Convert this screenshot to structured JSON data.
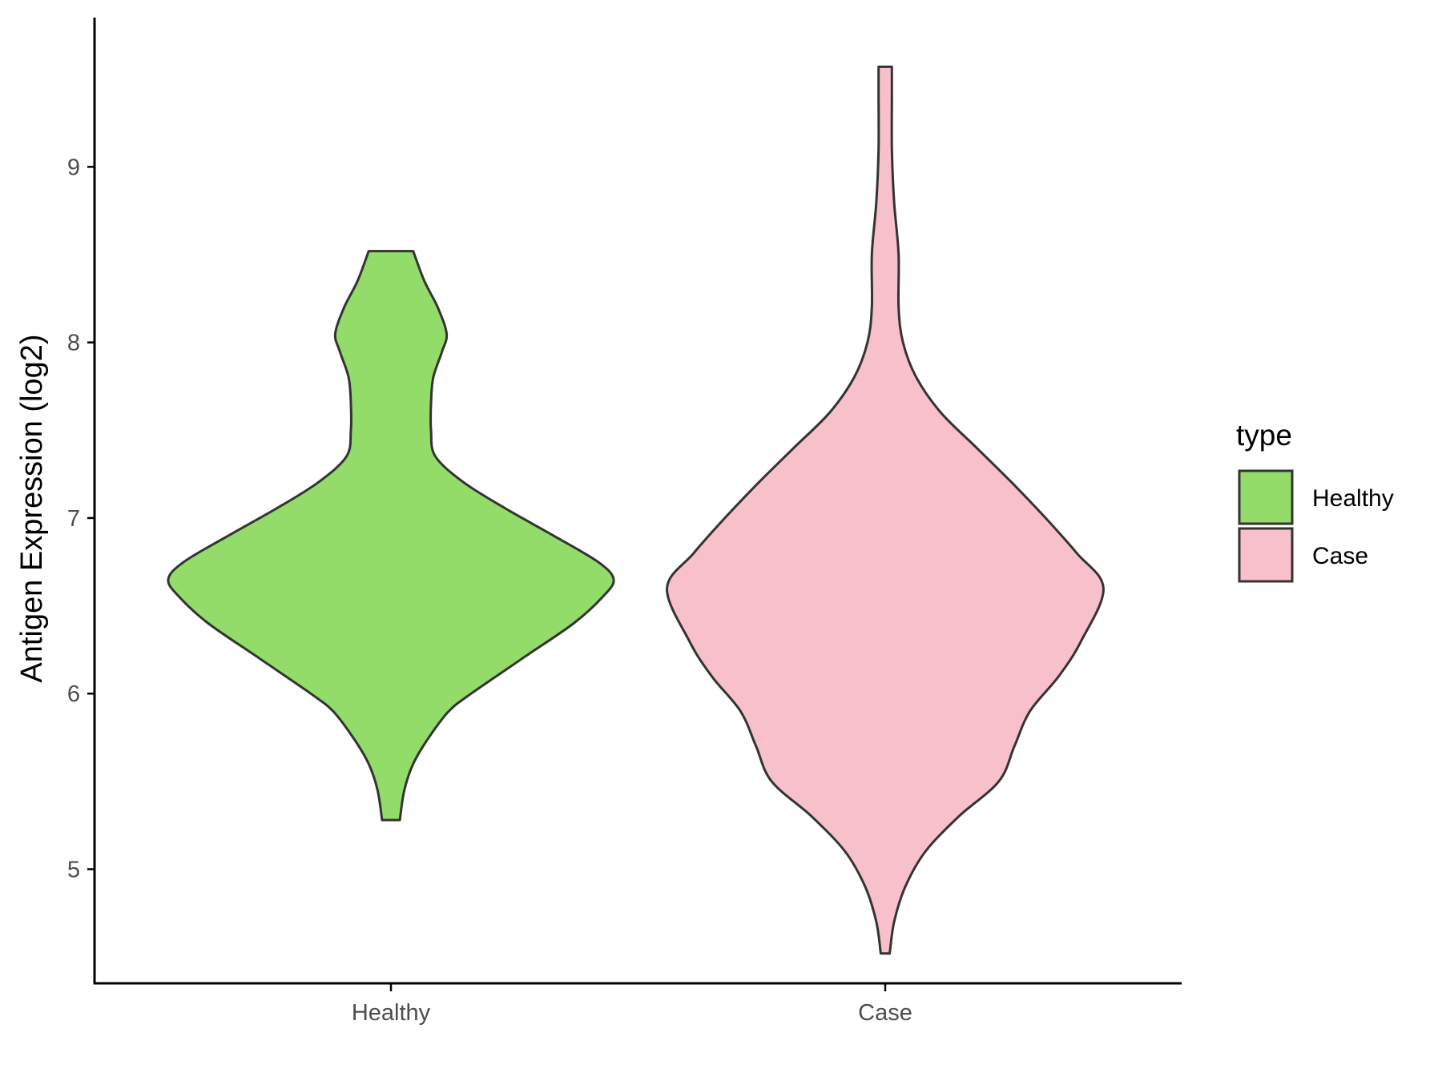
{
  "chart_data": {
    "type": "violin",
    "title": "",
    "xlabel": "",
    "ylabel": "Antigen Expression (log2)",
    "ylim": [
      4.35,
      9.85
    ],
    "yticks": [
      5,
      6,
      7,
      8,
      9
    ],
    "categories": [
      "Healthy",
      "Case"
    ],
    "grid": false,
    "legend": {
      "title": "type",
      "position": "right",
      "entries": [
        "Healthy",
        "Case"
      ]
    },
    "series": [
      {
        "name": "Healthy",
        "color": "#93dc6a",
        "min": 5.28,
        "max": 8.52,
        "density": [
          [
            5.28,
            0.04
          ],
          [
            5.45,
            0.06
          ],
          [
            5.6,
            0.1
          ],
          [
            5.75,
            0.17
          ],
          [
            5.9,
            0.26
          ],
          [
            6.0,
            0.36
          ],
          [
            6.2,
            0.59
          ],
          [
            6.4,
            0.82
          ],
          [
            6.55,
            0.95
          ],
          [
            6.65,
            1.0
          ],
          [
            6.75,
            0.93
          ],
          [
            6.9,
            0.73
          ],
          [
            7.05,
            0.52
          ],
          [
            7.2,
            0.33
          ],
          [
            7.35,
            0.2
          ],
          [
            7.5,
            0.18
          ],
          [
            7.65,
            0.18
          ],
          [
            7.8,
            0.19
          ],
          [
            7.95,
            0.23
          ],
          [
            8.05,
            0.25
          ],
          [
            8.2,
            0.21
          ],
          [
            8.35,
            0.15
          ],
          [
            8.52,
            0.1
          ]
        ]
      },
      {
        "name": "Case",
        "color": "#f8c0cb",
        "min": 4.52,
        "max": 9.57,
        "density": [
          [
            4.52,
            0.02
          ],
          [
            4.7,
            0.04
          ],
          [
            4.9,
            0.09
          ],
          [
            5.1,
            0.18
          ],
          [
            5.3,
            0.33
          ],
          [
            5.5,
            0.51
          ],
          [
            5.7,
            0.58
          ],
          [
            5.9,
            0.65
          ],
          [
            6.1,
            0.78
          ],
          [
            6.3,
            0.88
          ],
          [
            6.6,
            0.98
          ],
          [
            6.8,
            0.86
          ],
          [
            7.0,
            0.72
          ],
          [
            7.2,
            0.57
          ],
          [
            7.4,
            0.41
          ],
          [
            7.6,
            0.25
          ],
          [
            7.8,
            0.14
          ],
          [
            8.0,
            0.08
          ],
          [
            8.2,
            0.06
          ],
          [
            8.5,
            0.06
          ],
          [
            8.8,
            0.04
          ],
          [
            9.1,
            0.03
          ],
          [
            9.4,
            0.03
          ],
          [
            9.57,
            0.03
          ]
        ]
      }
    ]
  }
}
